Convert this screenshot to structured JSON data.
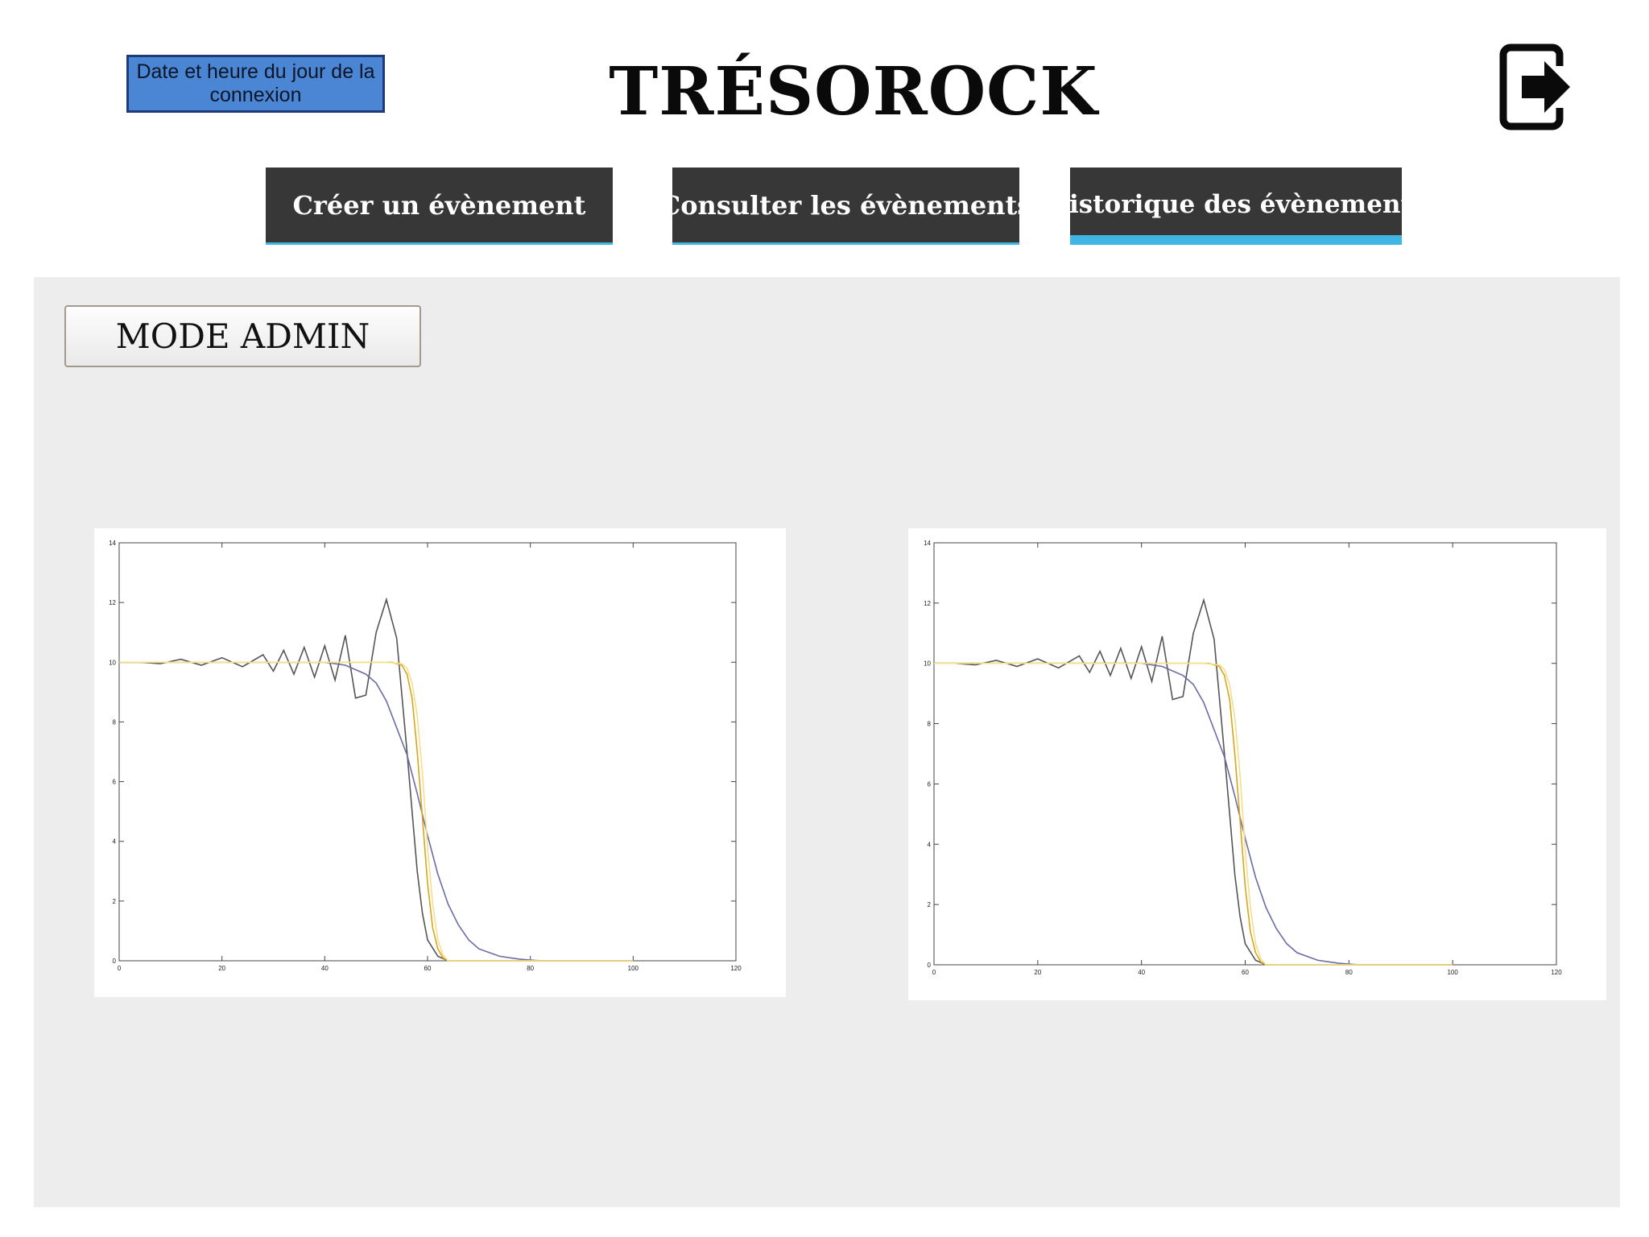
{
  "header": {
    "date_box": "Date et heure du jour de la connexion",
    "title": "TRÉSOROCK",
    "exit_icon": "sign-out-icon"
  },
  "nav": {
    "create_event": "Créer un évènement",
    "view_events": "Consulter les évènements",
    "history_events": "Historique des évènements",
    "active": "history_events",
    "accent_color": "#3fb6e4"
  },
  "panel": {
    "admin_button": "MODE ADMIN"
  },
  "chart_data": [
    {
      "type": "line",
      "title": "",
      "xlabel": "",
      "ylabel": "",
      "xlim": [
        0,
        120
      ],
      "ylim": [
        0,
        14
      ],
      "xticks": [
        "0",
        "20",
        "40",
        "60",
        "80",
        "100",
        "120"
      ],
      "yticks": [
        "0",
        "2",
        "4",
        "6",
        "8",
        "10",
        "12",
        "14"
      ],
      "grid": false,
      "series": [
        {
          "color": "#555555",
          "x": [
            0,
            4,
            8,
            12,
            16,
            20,
            24,
            28,
            30,
            32,
            34,
            36,
            38,
            40,
            42,
            44,
            46,
            48,
            50,
            52,
            54,
            56,
            57,
            58,
            59,
            60,
            62,
            64,
            70,
            80,
            100
          ],
          "y": [
            10,
            10,
            9.95,
            10.1,
            9.9,
            10.15,
            9.85,
            10.25,
            9.7,
            10.4,
            9.6,
            10.5,
            9.5,
            10.55,
            9.4,
            10.9,
            8.8,
            8.9,
            11.0,
            12.1,
            10.8,
            7.0,
            5.0,
            3.0,
            1.6,
            0.7,
            0.15,
            0,
            0,
            0,
            0
          ]
        },
        {
          "color": "#6b6ba8",
          "x": [
            0,
            20,
            40,
            44,
            48,
            50,
            52,
            54,
            56,
            58,
            60,
            62,
            64,
            66,
            68,
            70,
            74,
            78,
            82,
            100
          ],
          "y": [
            10,
            10,
            10,
            9.9,
            9.6,
            9.3,
            8.7,
            7.8,
            6.9,
            5.6,
            4.2,
            2.9,
            1.9,
            1.2,
            0.7,
            0.4,
            0.15,
            0.05,
            0,
            0
          ]
        },
        {
          "color": "#d9a520",
          "x": [
            0,
            50,
            53,
            55,
            56,
            57,
            58,
            59,
            60,
            61,
            62,
            63,
            64,
            66,
            80,
            100
          ],
          "y": [
            10,
            10,
            10,
            9.9,
            9.6,
            8.8,
            7.0,
            4.8,
            2.6,
            1.1,
            0.4,
            0.1,
            0,
            0,
            0,
            0
          ]
        },
        {
          "color": "#f2e08a",
          "x": [
            0,
            52,
            55,
            56,
            57,
            58,
            59,
            60,
            61,
            62,
            63,
            64,
            80,
            100
          ],
          "y": [
            10,
            10,
            9.95,
            9.8,
            9.3,
            8.2,
            6.3,
            3.8,
            1.9,
            0.7,
            0.2,
            0,
            0,
            0
          ]
        }
      ]
    },
    {
      "type": "line",
      "title": "",
      "xlabel": "",
      "ylabel": "",
      "xlim": [
        0,
        120
      ],
      "ylim": [
        0,
        14
      ],
      "xticks": [
        "0",
        "20",
        "40",
        "60",
        "80",
        "100",
        "120"
      ],
      "yticks": [
        "0",
        "2",
        "4",
        "6",
        "8",
        "10",
        "12",
        "14"
      ],
      "grid": false,
      "series": [
        {
          "color": "#555555",
          "x": [
            0,
            4,
            8,
            12,
            16,
            20,
            24,
            28,
            30,
            32,
            34,
            36,
            38,
            40,
            42,
            44,
            46,
            48,
            50,
            52,
            54,
            56,
            57,
            58,
            59,
            60,
            62,
            64,
            70,
            80,
            100
          ],
          "y": [
            10,
            10,
            9.95,
            10.1,
            9.9,
            10.15,
            9.85,
            10.25,
            9.7,
            10.4,
            9.6,
            10.5,
            9.5,
            10.55,
            9.4,
            10.9,
            8.8,
            8.9,
            11.0,
            12.1,
            10.8,
            7.0,
            5.0,
            3.0,
            1.6,
            0.7,
            0.15,
            0,
            0,
            0,
            0
          ]
        },
        {
          "color": "#6b6ba8",
          "x": [
            0,
            20,
            40,
            44,
            48,
            50,
            52,
            54,
            56,
            58,
            60,
            62,
            64,
            66,
            68,
            70,
            74,
            78,
            82,
            100
          ],
          "y": [
            10,
            10,
            10,
            9.9,
            9.6,
            9.3,
            8.7,
            7.8,
            6.9,
            5.6,
            4.2,
            2.9,
            1.9,
            1.2,
            0.7,
            0.4,
            0.15,
            0.05,
            0,
            0
          ]
        },
        {
          "color": "#d9a520",
          "x": [
            0,
            50,
            53,
            55,
            56,
            57,
            58,
            59,
            60,
            61,
            62,
            63,
            64,
            66,
            80,
            100
          ],
          "y": [
            10,
            10,
            10,
            9.9,
            9.6,
            8.8,
            7.0,
            4.8,
            2.6,
            1.1,
            0.4,
            0.1,
            0,
            0,
            0,
            0
          ]
        },
        {
          "color": "#f2e08a",
          "x": [
            0,
            52,
            55,
            56,
            57,
            58,
            59,
            60,
            61,
            62,
            63,
            64,
            80,
            100
          ],
          "y": [
            10,
            10,
            9.95,
            9.8,
            9.3,
            8.2,
            6.3,
            3.8,
            1.9,
            0.7,
            0.2,
            0,
            0,
            0
          ]
        }
      ]
    }
  ]
}
